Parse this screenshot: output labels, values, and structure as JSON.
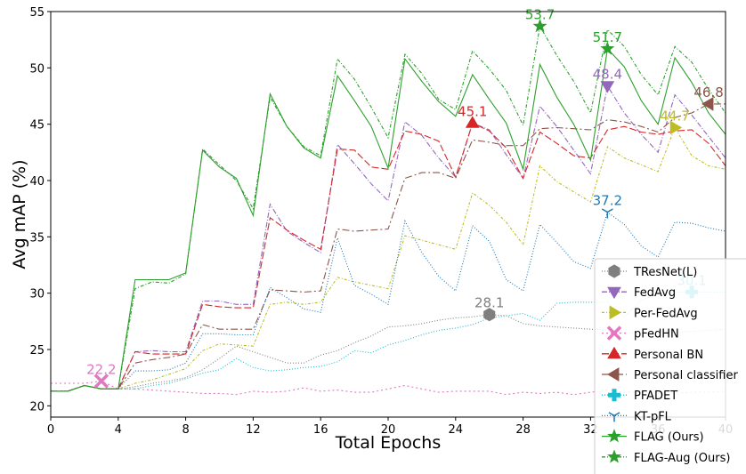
{
  "chart_data": {
    "type": "line",
    "xlabel": "Total Epochs",
    "ylabel": "Avg mAP (%)",
    "xlim": [
      0,
      40
    ],
    "ylim": [
      19,
      55
    ],
    "x_ticks": [
      0,
      4,
      8,
      12,
      16,
      20,
      24,
      28,
      32,
      36,
      40
    ],
    "x_tick_labels": [
      "0",
      "4",
      "8",
      "12",
      "16",
      "20",
      "24",
      "28",
      "32",
      "36",
      "40"
    ],
    "y_ticks": [
      20,
      25,
      30,
      35,
      40,
      45,
      50,
      55
    ],
    "grid": false,
    "legend_position": "lower-right",
    "x": [
      0,
      1,
      2,
      3,
      4,
      5,
      6,
      7,
      8,
      9,
      10,
      11,
      12,
      13,
      14,
      15,
      16,
      17,
      18,
      19,
      20,
      21,
      22,
      23,
      24,
      25,
      26,
      27,
      28,
      29,
      30,
      31,
      32,
      33,
      34,
      35,
      36,
      37,
      38,
      39,
      40
    ],
    "series": [
      {
        "name": "TResNet(L)",
        "color": "#7f7f7f",
        "dash": "1,2",
        "marker": "hexagon",
        "marker_x": 26,
        "marker_y": 28.1,
        "annotation": "28.1",
        "values": [
          21.3,
          21.3,
          21.8,
          21.5,
          21.5,
          21.7,
          22.0,
          22.2,
          22.5,
          23.2,
          24.2,
          25.3,
          24.8,
          24.3,
          23.8,
          23.8,
          24.5,
          24.9,
          25.6,
          26.2,
          27.0,
          27.1,
          27.3,
          27.6,
          27.8,
          27.9,
          28.1,
          28.0,
          27.3,
          27.1,
          27.0,
          26.9,
          26.8,
          26.7,
          26.5,
          26.4,
          26.7,
          26.5,
          26.6,
          26.7,
          26.8
        ]
      },
      {
        "name": "FedAvg",
        "color": "#9467bd",
        "dash": "6,2,1,2",
        "marker": "triangle-down",
        "marker_x": 33,
        "marker_y": 48.4,
        "annotation": "48.4",
        "values": [
          21.3,
          21.3,
          21.8,
          21.5,
          21.5,
          24.8,
          24.9,
          24.8,
          24.8,
          29.3,
          29.3,
          29.0,
          29.0,
          37.9,
          35.5,
          34.5,
          33.6,
          43.2,
          41.5,
          39.7,
          38.2,
          45.2,
          44.0,
          42.0,
          40.3,
          45.1,
          44.5,
          42.3,
          40.2,
          46.6,
          44.8,
          42.7,
          40.6,
          48.4,
          46.0,
          44.1,
          42.5,
          47.6,
          45.8,
          43.9,
          42.0
        ]
      },
      {
        "name": "Per-FedAvg",
        "color": "#bcbd22",
        "dash": "3,2,1,2",
        "marker": "triangle-right",
        "marker_x": 37,
        "marker_y": 44.7,
        "annotation": "44.7",
        "values": [
          21.3,
          21.3,
          21.8,
          21.5,
          21.5,
          22.0,
          22.3,
          22.8,
          23.3,
          24.9,
          25.5,
          25.4,
          25.3,
          29.0,
          29.2,
          29.0,
          29.2,
          31.4,
          31.0,
          30.7,
          30.4,
          35.1,
          34.7,
          34.3,
          33.9,
          38.9,
          37.8,
          36.3,
          34.3,
          41.3,
          39.9,
          39.0,
          38.1,
          43.0,
          42.0,
          41.4,
          40.8,
          44.7,
          42.2,
          41.3,
          41.0
        ]
      },
      {
        "name": "pFedHN",
        "color": "#e377c2",
        "dash": "2,3",
        "marker": "x",
        "marker_x": 3,
        "marker_y": 22.2,
        "annotation": "22.2",
        "values": [
          22.0,
          22.0,
          22.0,
          22.2,
          21.5,
          21.5,
          21.4,
          21.3,
          21.2,
          21.1,
          21.1,
          21.0,
          21.3,
          21.2,
          21.3,
          21.6,
          21.3,
          21.4,
          21.2,
          21.2,
          21.5,
          21.8,
          21.5,
          21.2,
          21.3,
          21.3,
          21.3,
          21.0,
          21.2,
          21.1,
          21.2,
          21.0,
          21.2,
          21.4,
          21.2,
          21.2,
          21.2,
          21.1,
          21.2,
          21.2,
          21.3
        ]
      },
      {
        "name": "Personal BN",
        "color": "#d62728",
        "dash": "8,3",
        "marker": "triangle-up",
        "marker_x": 25,
        "marker_y": 45.1,
        "annotation": "45.1",
        "values": [
          21.3,
          21.3,
          21.8,
          21.5,
          21.5,
          24.8,
          24.6,
          24.6,
          24.6,
          29.0,
          28.8,
          28.7,
          28.7,
          36.7,
          35.6,
          34.7,
          33.9,
          42.8,
          42.7,
          41.2,
          41.0,
          44.4,
          44.1,
          43.5,
          40.3,
          45.1,
          44.4,
          42.9,
          40.2,
          44.3,
          43.3,
          42.2,
          42.0,
          44.5,
          44.8,
          44.3,
          44.1,
          44.4,
          44.5,
          43.3,
          41.3
        ]
      },
      {
        "name": "Personal classifier",
        "color": "#8c564b",
        "dash": "8,3,2,3",
        "marker": "triangle-left",
        "marker_x": 39,
        "marker_y": 46.8,
        "annotation": "46.8",
        "values": [
          21.3,
          21.3,
          21.8,
          21.5,
          21.5,
          23.8,
          24.1,
          24.3,
          24.6,
          27.2,
          26.8,
          26.8,
          26.8,
          30.3,
          30.2,
          30.1,
          30.2,
          35.7,
          35.5,
          35.6,
          35.7,
          40.2,
          40.7,
          40.7,
          40.2,
          43.6,
          43.4,
          43.1,
          43.1,
          44.6,
          44.7,
          44.6,
          44.5,
          45.4,
          45.2,
          44.8,
          44.3,
          45.6,
          46.0,
          46.8,
          46.8
        ]
      },
      {
        "name": "PFADET",
        "color": "#17becf",
        "dash": "1,2",
        "marker": "plus",
        "marker_x": 38,
        "marker_y": 30.1,
        "annotation": "30.1",
        "values": [
          21.3,
          21.3,
          21.8,
          21.5,
          21.5,
          21.5,
          21.8,
          22.0,
          22.4,
          22.9,
          23.2,
          24.2,
          23.4,
          23.1,
          23.2,
          23.4,
          23.5,
          23.9,
          24.9,
          24.7,
          25.4,
          25.8,
          26.3,
          26.7,
          26.9,
          27.2,
          27.8,
          28.0,
          28.2,
          27.6,
          29.1,
          29.2,
          29.2,
          29.2,
          27.9,
          29.4,
          29.9,
          30.1,
          30.1,
          30.1,
          30.1
        ]
      },
      {
        "name": "KT-pFL",
        "color": "#1f77b4",
        "dash": "1,2",
        "marker": "tri",
        "marker_x": 33,
        "marker_y": 37.2,
        "annotation": "37.2",
        "values": [
          21.3,
          21.3,
          21.8,
          21.5,
          21.5,
          23.1,
          23.1,
          23.2,
          23.8,
          26.4,
          26.4,
          26.3,
          26.3,
          30.5,
          29.6,
          28.6,
          28.3,
          34.9,
          30.7,
          29.9,
          29.0,
          36.4,
          33.6,
          31.5,
          30.2,
          36.0,
          34.6,
          31.2,
          30.2,
          36.1,
          34.5,
          32.8,
          32.2,
          37.2,
          36.1,
          34.2,
          33.2,
          36.3,
          36.2,
          35.8,
          35.5
        ]
      },
      {
        "name": "FLAG (Ours)",
        "color": "#2ca02c",
        "dash": "",
        "marker": "star",
        "marker_x": 33,
        "marker_y": 51.7,
        "annotation": "51.7",
        "values": [
          21.3,
          21.3,
          21.8,
          21.5,
          21.5,
          31.2,
          31.2,
          31.2,
          31.8,
          42.7,
          41.2,
          40.2,
          36.9,
          47.7,
          44.8,
          42.9,
          42.0,
          49.3,
          47.1,
          44.8,
          41.1,
          50.8,
          48.8,
          47.0,
          45.7,
          49.4,
          47.2,
          45.1,
          41.0,
          50.3,
          47.4,
          45.0,
          41.8,
          51.7,
          50.1,
          47.1,
          45.0,
          50.9,
          48.7,
          46.0,
          44.1
        ]
      },
      {
        "name": "FLAG-Aug (Ours)",
        "color": "#2ca02c",
        "dash": "4,2,1,2",
        "marker": "star",
        "marker_x": 29,
        "marker_y": 53.7,
        "annotation": "53.7",
        "values": [
          21.3,
          21.3,
          21.8,
          21.5,
          21.5,
          30.4,
          31.0,
          30.9,
          31.7,
          42.8,
          41.4,
          40.0,
          37.5,
          47.4,
          44.8,
          43.0,
          42.2,
          50.8,
          49.0,
          46.5,
          43.8,
          51.2,
          49.5,
          47.2,
          46.3,
          51.5,
          49.9,
          48.0,
          44.9,
          53.7,
          51.1,
          48.8,
          46.0,
          53.4,
          51.9,
          49.4,
          47.6,
          51.9,
          50.5,
          48.1,
          46.0
        ]
      }
    ]
  }
}
